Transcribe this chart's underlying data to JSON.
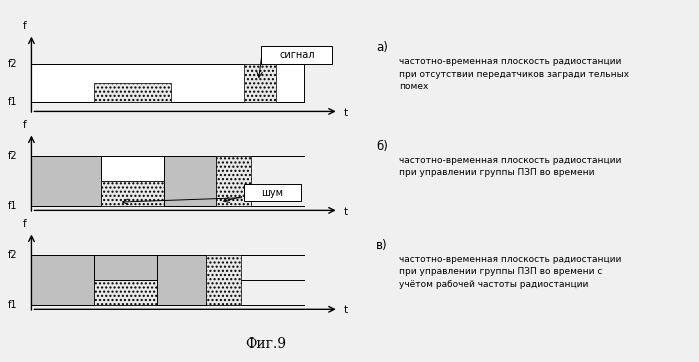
{
  "fig_title": "Фиг.9",
  "panel_a_label": "а)",
  "panel_b_label": "б)",
  "panel_c_label": "в)",
  "panel_a_text": "частотно-временная плоскость радиостанции\nпри отсутствии передатчиков загради тельных\nпомех",
  "panel_b_text": "частотно-временная плоскость радиостанции\nпри управлении группы ПЗП во времени",
  "panel_c_text": "частотно-временная плоскость радиостанции\nпри управлении группы ПЗП во времени с\nучётом рабочей частоты радиостанции",
  "signal_label": "сигнал",
  "noise_label": "шум",
  "bg_color": "#f0f0f0",
  "white": "#ffffff",
  "gray": "#c0c0c0",
  "light_hatch": "#e8e8e8"
}
